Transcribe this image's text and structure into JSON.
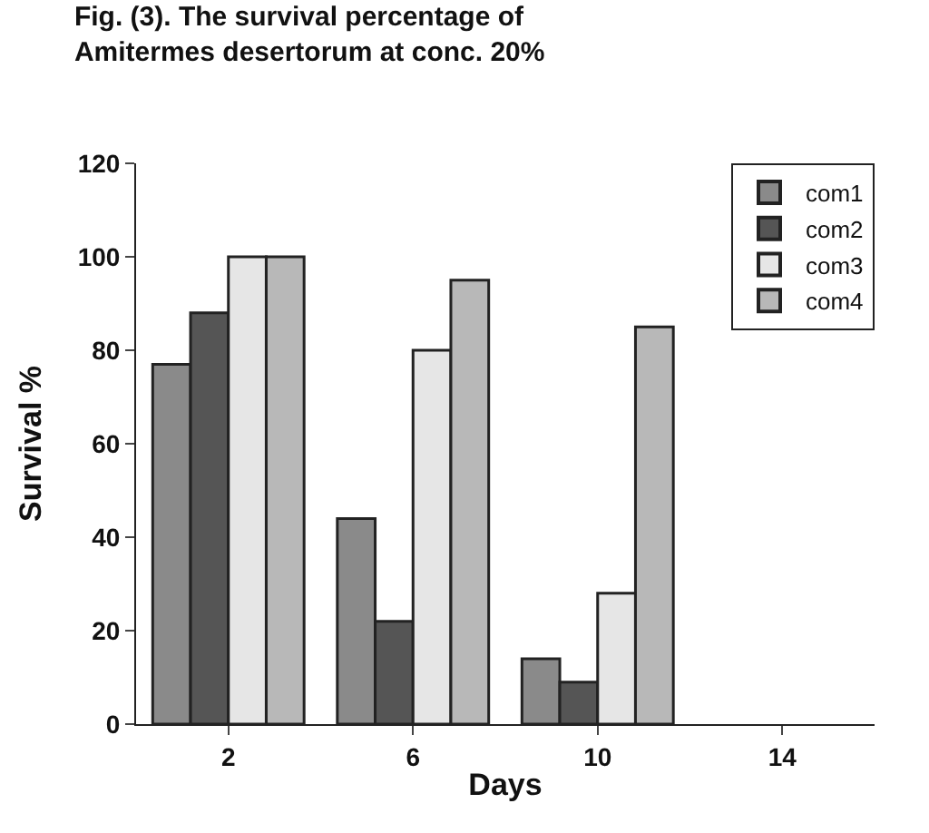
{
  "chart_data": {
    "type": "bar",
    "title": "Fig. (3). The survival percentage of\nAmitermes desertorum at conc. 20%",
    "xlabel": "Days",
    "ylabel": "Survival %",
    "categories": [
      "2",
      "6",
      "10",
      "14"
    ],
    "series": [
      {
        "name": "com1",
        "color": "#8a8a8a",
        "values": [
          77,
          44,
          14,
          null
        ]
      },
      {
        "name": "com2",
        "color": "#555555",
        "values": [
          88,
          22,
          9,
          null
        ]
      },
      {
        "name": "com3",
        "color": "#e6e6e6",
        "values": [
          100,
          80,
          28,
          null
        ]
      },
      {
        "name": "com4",
        "color": "#b8b8b8",
        "values": [
          100,
          95,
          85,
          null
        ]
      }
    ],
    "ylim": [
      0,
      120
    ],
    "yticks": [
      0,
      20,
      40,
      60,
      80,
      100,
      120
    ],
    "legend": "top right"
  }
}
